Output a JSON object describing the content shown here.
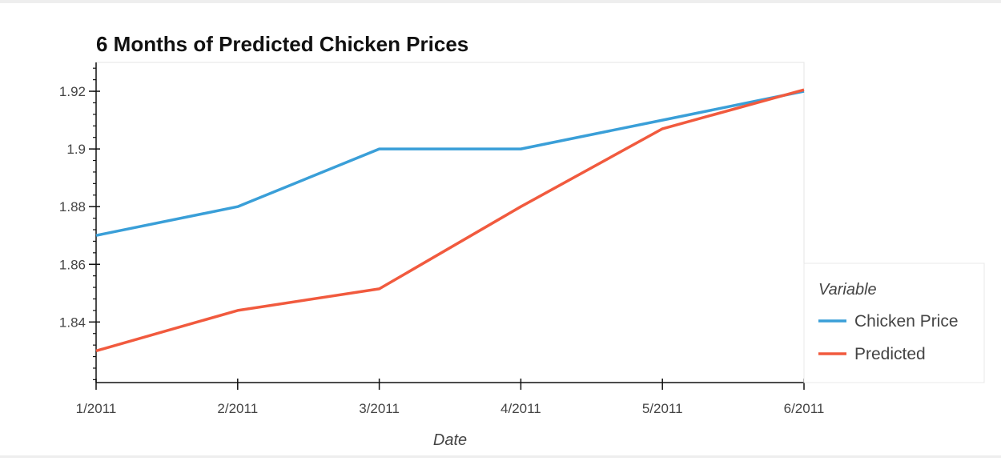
{
  "chart_data": {
    "type": "line",
    "title": "6 Months of Predicted Chicken Prices",
    "xlabel": "Date",
    "ylabel": "",
    "x": [
      "1/2011",
      "2/2011",
      "3/2011",
      "4/2011",
      "5/2011",
      "6/2011"
    ],
    "x_index": [
      0,
      1,
      2,
      3,
      4,
      5
    ],
    "x_ticks": [
      "1/2011",
      "2/2011",
      "3/2011",
      "4/2011",
      "5/2011",
      "6/2011"
    ],
    "xlim": [
      0,
      5
    ],
    "ylim": [
      1.819,
      1.93
    ],
    "y_ticks": [
      1.84,
      1.86,
      1.88,
      1.9,
      1.92
    ],
    "y_tick_labels": [
      "1.84",
      "1.86",
      "1.88",
      "1.9",
      "1.92"
    ],
    "y_minor_step": 0.004,
    "grid": false,
    "legend": {
      "title": "Variable",
      "placement": "right"
    },
    "series": [
      {
        "name": "Chicken Price",
        "color": "#3a9fd8",
        "values": [
          1.87,
          1.88,
          1.9,
          1.9,
          1.91,
          1.92
        ]
      },
      {
        "name": "Predicted",
        "color": "#f15a3e",
        "values": [
          1.83,
          1.844,
          1.8515,
          1.88,
          1.907,
          1.9205
        ]
      }
    ]
  }
}
